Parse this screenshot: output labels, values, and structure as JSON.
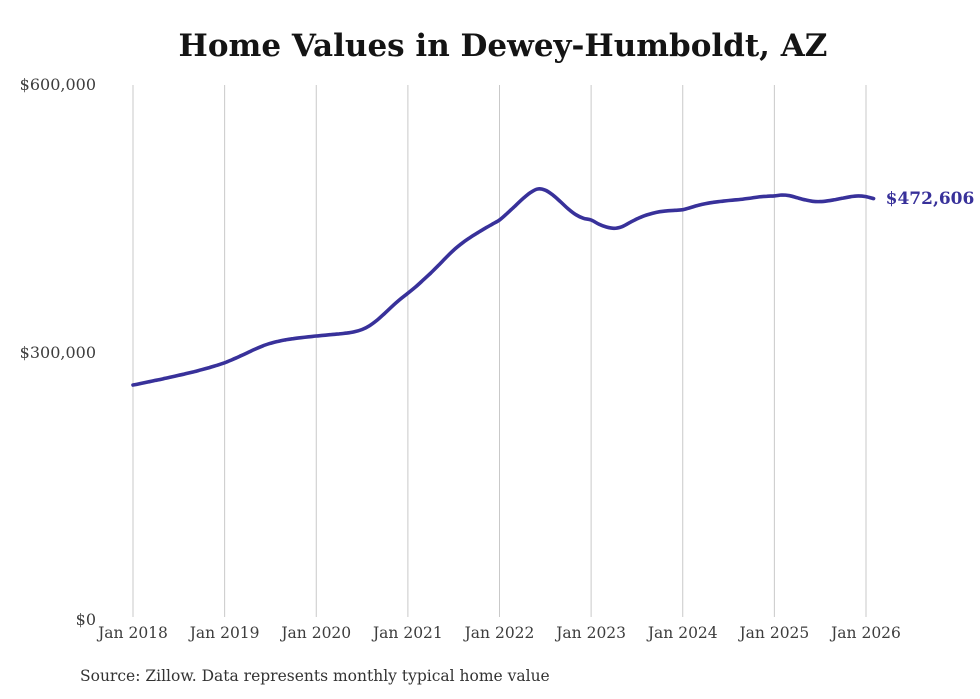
{
  "chart_data": {
    "type": "line",
    "title": "Home Values in Dewey-Humboldt, AZ",
    "source_note": "Source: Zillow. Data represents monthly typical home value",
    "latest_value": 472606,
    "latest_value_label": "$472,606",
    "line_color": "#38319a",
    "grid_color": "#c9c9c9",
    "title_color": "#141414",
    "tick_color": "#3d3d3d",
    "legend": "none",
    "grid": "vertical-only",
    "ylim": [
      0,
      600000
    ],
    "y_ticks": [
      {
        "value": 0,
        "label": "$0"
      },
      {
        "value": 300000,
        "label": "$300,000"
      },
      {
        "value": 600000,
        "label": "$600,000"
      }
    ],
    "x_ticks": [
      {
        "year": 2018,
        "label": "Jan 2018"
      },
      {
        "year": 2019,
        "label": "Jan 2019"
      },
      {
        "year": 2020,
        "label": "Jan 2020"
      },
      {
        "year": 2021,
        "label": "Jan 2021"
      },
      {
        "year": 2022,
        "label": "Jan 2022"
      },
      {
        "year": 2023,
        "label": "Jan 2023"
      },
      {
        "year": 2024,
        "label": "Jan 2024"
      },
      {
        "year": 2025,
        "label": "Jan 2025"
      },
      {
        "year": 2026,
        "label": "Jan 2026"
      }
    ],
    "series": [
      {
        "name": "Monthly typical home value",
        "start_year": 2018,
        "start_month": 1,
        "interval": "monthly",
        "values": [
          263500,
          265200,
          267000,
          268800,
          270600,
          272500,
          274400,
          276400,
          278500,
          280700,
          283100,
          285700,
          288500,
          292000,
          295800,
          299800,
          303800,
          307400,
          310300,
          312500,
          314200,
          315500,
          316600,
          317600,
          318500,
          319300,
          320100,
          320900,
          321800,
          323200,
          325800,
          330200,
          336500,
          344200,
          352300,
          359800,
          366500,
          373500,
          381200,
          389200,
          397700,
          406500,
          414800,
          421900,
          428100,
          433600,
          438700,
          443700,
          448600,
          456000,
          464000,
          472000,
          479000,
          483400,
          482000,
          476500,
          469000,
          461000,
          454500,
          450500,
          448600,
          444000,
          440800,
          439300,
          441000,
          445500,
          449800,
          453400,
          456000,
          457900,
          458900,
          459500,
          460200,
          462500,
          465000,
          467000,
          468500,
          469500,
          470500,
          471200,
          472100,
          473300,
          474500,
          475200,
          475600,
          476600,
          475800,
          473500,
          471200,
          469600,
          469200,
          470100,
          471500,
          473200,
          474700,
          475600,
          474800,
          472606
        ]
      }
    ]
  }
}
